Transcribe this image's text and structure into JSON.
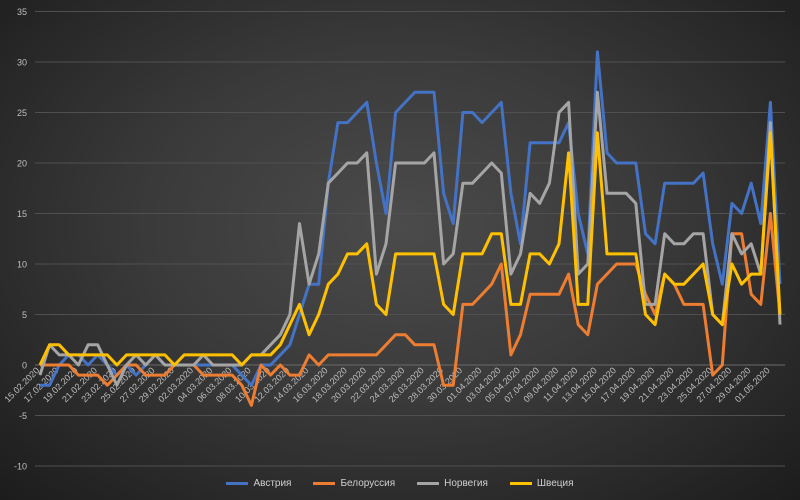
{
  "chart_data": {
    "type": "line",
    "title": "",
    "xlabel": "",
    "ylabel": "",
    "ylim": [
      -10,
      35
    ],
    "y_ticks": [
      -10,
      -5,
      0,
      5,
      10,
      15,
      20,
      25,
      30,
      35
    ],
    "grid": true,
    "legend_position": "bottom",
    "x_tick_labels": [
      "15.02.2020",
      "17.02.2020",
      "19.02.2020",
      "21.02.2020",
      "23.02.2020",
      "25.02.2020",
      "27.02.2020",
      "29.02.2020",
      "02.03.2020",
      "04.03.2020",
      "06.03.2020",
      "08.03.2020",
      "10.03.2020",
      "12.03.2020",
      "14.03.2020",
      "16.03.2020",
      "18.03.2020",
      "20.03.2020",
      "22.03.2020",
      "24.03.2020",
      "26.03.2020",
      "28.03.2020",
      "30.03.2020",
      "01.04.2020",
      "03.04.2020",
      "05.04.2020",
      "07.04.2020",
      "09.04.2020",
      "11.04.2020",
      "13.04.2020",
      "15.04.2020",
      "17.04.2020",
      "19.04.2020",
      "21.04.2020",
      "23.04.2020",
      "25.04.2020",
      "27.04.2020",
      "29.04.2020",
      "01.05.2020"
    ],
    "series": [
      {
        "name": "Австрия",
        "color": "#4472c4",
        "values": [
          -2,
          -2,
          0,
          1,
          1,
          0,
          1,
          0,
          -1,
          0,
          -1,
          0,
          1,
          0,
          0,
          0,
          0,
          0,
          0,
          0,
          0,
          -1,
          -2,
          0,
          0,
          1,
          2,
          5,
          8,
          8,
          18,
          24,
          24,
          25,
          26,
          20,
          15,
          25,
          26,
          27,
          27,
          27,
          17,
          14,
          25,
          25,
          24,
          25,
          26,
          17,
          12,
          22,
          22,
          22,
          22,
          24,
          15,
          11,
          31,
          21,
          20,
          20,
          20,
          13,
          12,
          18,
          18,
          18,
          18,
          19,
          12,
          8,
          16,
          15,
          18,
          14,
          26,
          8
        ]
      },
      {
        "name": "Белоруссия",
        "color": "#ed7d31",
        "values": [
          0,
          0,
          0,
          0,
          -1,
          -1,
          -1,
          -2,
          -1,
          0,
          0,
          -1,
          -1,
          -1,
          0,
          0,
          0,
          -1,
          -1,
          -1,
          -1,
          -2,
          -4,
          0,
          -1,
          0,
          -1,
          -1,
          1,
          0,
          1,
          1,
          1,
          1,
          1,
          1,
          2,
          3,
          3,
          2,
          2,
          2,
          -2,
          -2,
          6,
          6,
          7,
          8,
          10,
          1,
          3,
          7,
          7,
          7,
          7,
          9,
          4,
          3,
          8,
          9,
          10,
          10,
          10,
          7,
          5,
          9,
          8,
          6,
          6,
          6,
          -1,
          0,
          13,
          13,
          7,
          6,
          15,
          5
        ]
      },
      {
        "name": "Норвегия",
        "color": "#a5a5a5",
        "values": [
          -1,
          2,
          1,
          1,
          0,
          2,
          2,
          0,
          -2,
          0,
          1,
          0,
          1,
          0,
          0,
          0,
          0,
          1,
          0,
          0,
          0,
          0,
          1,
          1,
          2,
          3,
          5,
          14,
          8,
          11,
          18,
          19,
          20,
          20,
          21,
          9,
          12,
          20,
          20,
          20,
          20,
          21,
          10,
          11,
          18,
          18,
          19,
          20,
          19,
          9,
          11,
          17,
          16,
          18,
          25,
          26,
          9,
          10,
          27,
          17,
          17,
          17,
          16,
          6,
          6,
          13,
          12,
          12,
          13,
          13,
          5,
          4,
          13,
          11,
          12,
          9,
          24,
          4
        ]
      },
      {
        "name": "Швеция",
        "color": "#ffc000",
        "values": [
          0,
          2,
          2,
          1,
          1,
          1,
          1,
          1,
          0,
          1,
          1,
          1,
          1,
          1,
          0,
          1,
          1,
          1,
          1,
          1,
          1,
          0,
          1,
          1,
          1,
          2,
          4,
          6,
          3,
          5,
          8,
          9,
          11,
          11,
          12,
          6,
          5,
          11,
          11,
          11,
          11,
          11,
          6,
          5,
          11,
          11,
          11,
          13,
          13,
          6,
          6,
          11,
          11,
          10,
          12,
          21,
          6,
          6,
          23,
          11,
          11,
          11,
          11,
          5,
          4,
          9,
          8,
          8,
          9,
          10,
          5,
          4,
          10,
          8,
          9,
          9,
          23,
          5
        ]
      }
    ]
  }
}
